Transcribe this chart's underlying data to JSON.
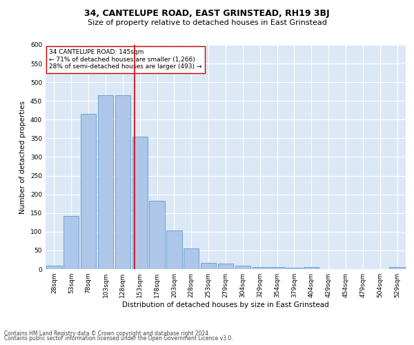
{
  "title": "34, CANTELUPE ROAD, EAST GRINSTEAD, RH19 3BJ",
  "subtitle": "Size of property relative to detached houses in East Grinstead",
  "xlabel": "Distribution of detached houses by size in East Grinstead",
  "ylabel": "Number of detached properties",
  "footer_line1": "Contains HM Land Registry data © Crown copyright and database right 2024.",
  "footer_line2": "Contains public sector information licensed under the Open Government Licence v3.0.",
  "categories": [
    "28sqm",
    "53sqm",
    "78sqm",
    "103sqm",
    "128sqm",
    "153sqm",
    "178sqm",
    "203sqm",
    "228sqm",
    "253sqm",
    "279sqm",
    "304sqm",
    "329sqm",
    "354sqm",
    "379sqm",
    "404sqm",
    "429sqm",
    "454sqm",
    "479sqm",
    "504sqm",
    "529sqm"
  ],
  "values": [
    10,
    143,
    416,
    465,
    465,
    355,
    183,
    103,
    55,
    16,
    14,
    10,
    6,
    5,
    4,
    5,
    0,
    0,
    0,
    0,
    5
  ],
  "bar_color": "#aec6e8",
  "bar_edge_color": "#5b9bd5",
  "background_color": "#dce8f5",
  "grid_color": "#ffffff",
  "vline_color": "#cc0000",
  "annotation_title": "34 CANTELUPE ROAD: 145sqm",
  "annotation_line1": "← 71% of detached houses are smaller (1,266)",
  "annotation_line2": "28% of semi-detached houses are larger (493) →",
  "annotation_box_color": "#ffffff",
  "annotation_box_edge": "#cc0000",
  "ylim": [
    0,
    600
  ],
  "yticks": [
    0,
    50,
    100,
    150,
    200,
    250,
    300,
    350,
    400,
    450,
    500,
    550,
    600
  ],
  "title_fontsize": 9,
  "subtitle_fontsize": 8,
  "axis_label_fontsize": 7.5,
  "tick_fontsize": 6.5,
  "footer_fontsize": 5.5,
  "annotation_fontsize": 6.5
}
